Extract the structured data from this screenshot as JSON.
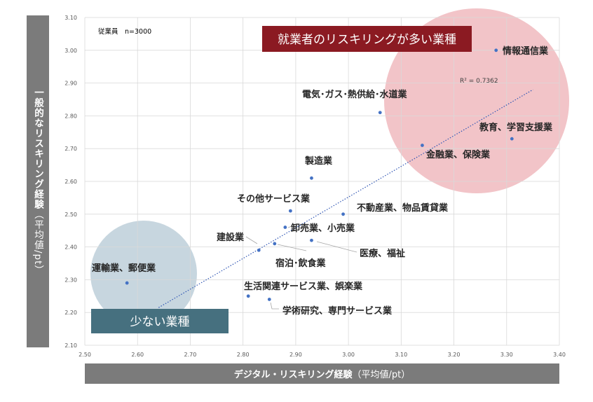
{
  "chart_data": {
    "type": "scatter",
    "xlabel": "デジタル・リスキリング経験",
    "xlabel_unit": "（平均値/pt）",
    "ylabel": "一般的なリスキリング経験",
    "ylabel_unit": "（平均値/pt）",
    "xlim": [
      2.5,
      3.4
    ],
    "ylim": [
      2.1,
      3.1
    ],
    "x_ticks": [
      "2.50",
      "2.60",
      "2.70",
      "2.80",
      "2.90",
      "3.00",
      "3.10",
      "3.20",
      "3.30",
      "3.40"
    ],
    "y_ticks": [
      "2.10",
      "2.20",
      "2.30",
      "2.40",
      "2.50",
      "2.60",
      "2.70",
      "2.80",
      "2.90",
      "3.00",
      "3.10"
    ],
    "grid": true,
    "sample_note": "従業員　n=3000",
    "trendline": {
      "type": "linear",
      "x_start": 2.64,
      "y_start": 2.215,
      "x_end": 3.35,
      "y_end": 2.88,
      "r2_label": "R² = 0.7362"
    },
    "points": [
      {
        "label": "情報通信業",
        "x": 3.28,
        "y": 3.0
      },
      {
        "label": "電気･ガス･熱供給･水道業",
        "x": 3.06,
        "y": 2.81
      },
      {
        "label": "教育、学習支援業",
        "x": 3.31,
        "y": 2.73
      },
      {
        "label": "金融業、保険業",
        "x": 3.14,
        "y": 2.71
      },
      {
        "label": "製造業",
        "x": 2.93,
        "y": 2.61
      },
      {
        "label": "その他サービス業",
        "x": 2.89,
        "y": 2.51
      },
      {
        "label": "不動産業、物品賃貸業",
        "x": 2.99,
        "y": 2.5
      },
      {
        "label": "卸売業、小売業",
        "x": 2.88,
        "y": 2.46
      },
      {
        "label": "建設業",
        "x": 2.83,
        "y": 2.39
      },
      {
        "label": "医療、福祉",
        "x": 2.93,
        "y": 2.42
      },
      {
        "label": "宿泊･飲食業",
        "x": 2.86,
        "y": 2.41
      },
      {
        "label": "運輸業、郵便業",
        "x": 2.58,
        "y": 2.29
      },
      {
        "label": "生活関連サービス業、娯楽業",
        "x": 2.81,
        "y": 2.25
      },
      {
        "label": "学術研究、専門サービス業",
        "x": 2.85,
        "y": 2.24
      }
    ],
    "annotations": {
      "high_label": "就業者のリスキリングが多い業種",
      "low_label": "少ない業種"
    },
    "colors": {
      "point": "#4472c4",
      "trend": "#2f55b4",
      "grid": "#d9d9d9",
      "high_circle": "#f2c4c8",
      "low_circle": "#c7d6df",
      "high_box": "#8b1a22",
      "low_box": "#46707f",
      "axis_bar": "#7b7b7b"
    }
  }
}
